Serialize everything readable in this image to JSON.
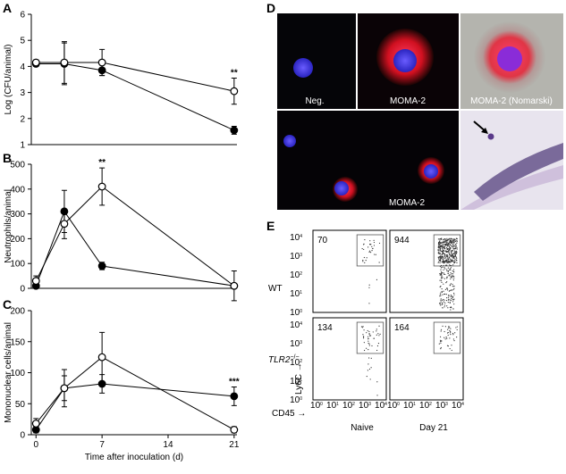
{
  "chart_data": [
    {
      "type": "line",
      "panel": "A",
      "ylabel": "Log (CFU/animal)",
      "x": [
        0,
        3,
        7,
        21
      ],
      "xlim": [
        -0.5,
        21.3
      ],
      "ylim": [
        1,
        6
      ],
      "yticks": [
        1,
        2,
        3,
        4,
        5,
        6
      ],
      "series": [
        {
          "color": "#000000",
          "fill": "#000000",
          "values": [
            4.1,
            4.1,
            3.85,
            1.55
          ],
          "errors": [
            0.1,
            0.8,
            0.2,
            0.15
          ]
        },
        {
          "color": "#000000",
          "fill": "#ffffff",
          "values": [
            4.15,
            4.15,
            4.15,
            3.05
          ],
          "errors": [
            0.1,
            0.8,
            0.5,
            0.5
          ]
        }
      ],
      "annotations": [
        {
          "text": "**",
          "x": 21
        }
      ]
    },
    {
      "type": "line",
      "panel": "B",
      "ylabel": "Neutrophils/animal",
      "x": [
        0,
        3,
        7,
        21
      ],
      "xlim": [
        -0.5,
        21.3
      ],
      "ylim": [
        0,
        500
      ],
      "yticks": [
        0,
        100,
        200,
        300,
        400,
        500
      ],
      "series": [
        {
          "color": "#000000",
          "fill": "#000000",
          "values": [
            10,
            310,
            90,
            10
          ],
          "errors": [
            10,
            85,
            15,
            10
          ]
        },
        {
          "color": "#000000",
          "fill": "#ffffff",
          "values": [
            30,
            260,
            410,
            10
          ],
          "errors": [
            20,
            60,
            75,
            60
          ]
        }
      ],
      "annotations": [
        {
          "text": "**",
          "x": 7
        }
      ]
    },
    {
      "type": "line",
      "panel": "C",
      "ylabel": "Mononuclear cells/animal",
      "xlabel": "Time after inoculation (d)",
      "x": [
        0,
        3,
        7,
        21
      ],
      "xlim": [
        -0.5,
        21.3
      ],
      "ylim": [
        0,
        200
      ],
      "yticks": [
        0,
        50,
        100,
        150,
        200
      ],
      "xticks": [
        0,
        7,
        14,
        21
      ],
      "series": [
        {
          "color": "#000000",
          "fill": "#000000",
          "values": [
            8,
            75,
            82,
            62
          ],
          "errors": [
            5,
            20,
            15,
            15
          ]
        },
        {
          "color": "#000000",
          "fill": "#ffffff",
          "values": [
            18,
            75,
            125,
            8
          ],
          "errors": [
            8,
            30,
            40,
            5
          ]
        }
      ],
      "annotations": [
        {
          "text": "***",
          "x": 21
        }
      ]
    }
  ],
  "panel_d": {
    "letter": "D",
    "labels": [
      "Neg.",
      "MOMA-2",
      "MOMA-2 (Nomarski)",
      "MOMA-2"
    ]
  },
  "panel_e": {
    "letter": "E",
    "rows": [
      "WT",
      "TLR2"
    ],
    "row_superscript": "−/−",
    "columns": [
      "Naive",
      "Day 21"
    ],
    "counts": [
      "70",
      "944",
      "134",
      "164"
    ],
    "y_axis_label": "Ly6C →",
    "x_axis_label": "CD45 →",
    "tick_base": "10",
    "tick_exponents": [
      "0",
      "1",
      "2",
      "3",
      "4"
    ]
  }
}
